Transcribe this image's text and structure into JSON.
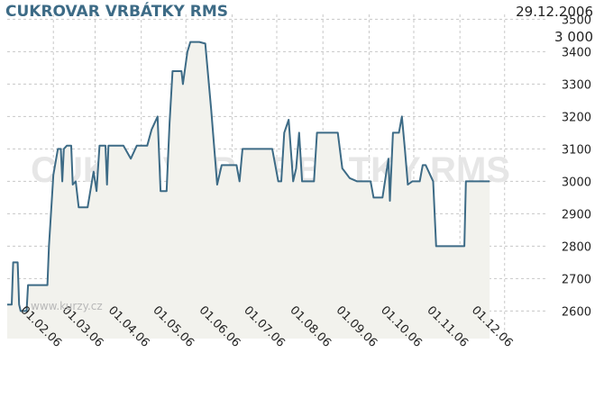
{
  "title": "CUKROVAR VRBÁTKY RMS",
  "date": "29.12.2006",
  "last_value": "3 000",
  "watermark": "CUKROVAR VRBÁTKY RMS",
  "credit": "www.kurzy.cz",
  "colors": {
    "line": "#3d6b86",
    "fill": "#f2f2ed",
    "grid": "#c8c8c8",
    "text": "#222222",
    "watermark": "#e6e6e6"
  },
  "chart_data": {
    "type": "area",
    "ylim": [
      2515,
      3515
    ],
    "yticks": [
      2600,
      2700,
      2800,
      2900,
      3000,
      3100,
      3200,
      3300,
      3400,
      3500
    ],
    "ytick_labels": [
      "2600",
      "2700",
      "2800",
      "2900",
      "3000",
      "3100",
      "3200",
      "3300",
      "3400",
      "3500"
    ],
    "xlim": [
      "2006-01-01",
      "2006-12-29"
    ],
    "xticks": [
      "2006-02-01",
      "2006-03-01",
      "2006-04-01",
      "2006-05-01",
      "2006-06-01",
      "2006-07-01",
      "2006-08-01",
      "2006-09-01",
      "2006-10-01",
      "2006-11-01",
      "2006-12-01"
    ],
    "xtick_labels": [
      "01.02.06",
      "01.03.06",
      "01.04.06",
      "01.05.06",
      "01.06.06",
      "01.07.06",
      "01.08.06",
      "01.09.06",
      "01.10.06",
      "01.11.06",
      "01.12.06"
    ],
    "grid": true,
    "series": [
      {
        "points": [
          [
            "2006-01-01",
            2620
          ],
          [
            "2006-01-04",
            2620
          ],
          [
            "2006-01-05",
            2750
          ],
          [
            "2006-01-08",
            2750
          ],
          [
            "2006-01-09",
            2620
          ],
          [
            "2006-01-10",
            2600
          ],
          [
            "2006-01-14",
            2600
          ],
          [
            "2006-01-15",
            2680
          ],
          [
            "2006-01-28",
            2680
          ],
          [
            "2006-01-29",
            2800
          ],
          [
            "2006-02-01",
            3020
          ],
          [
            "2006-02-04",
            3100
          ],
          [
            "2006-02-06",
            3100
          ],
          [
            "2006-02-07",
            3000
          ],
          [
            "2006-02-08",
            3100
          ],
          [
            "2006-02-10",
            3110
          ],
          [
            "2006-02-13",
            3110
          ],
          [
            "2006-02-14",
            2990
          ],
          [
            "2006-02-16",
            3000
          ],
          [
            "2006-02-18",
            2920
          ],
          [
            "2006-02-24",
            2920
          ],
          [
            "2006-02-28",
            3030
          ],
          [
            "2006-03-02",
            2970
          ],
          [
            "2006-03-04",
            3110
          ],
          [
            "2006-03-08",
            3110
          ],
          [
            "2006-03-09",
            2990
          ],
          [
            "2006-03-10",
            3110
          ],
          [
            "2006-03-20",
            3110
          ],
          [
            "2006-03-25",
            3070
          ],
          [
            "2006-03-29",
            3110
          ],
          [
            "2006-04-05",
            3110
          ],
          [
            "2006-04-08",
            3160
          ],
          [
            "2006-04-12",
            3200
          ],
          [
            "2006-04-14",
            2970
          ],
          [
            "2006-04-18",
            2970
          ],
          [
            "2006-04-20",
            3180
          ],
          [
            "2006-04-22",
            3340
          ],
          [
            "2006-04-28",
            3340
          ],
          [
            "2006-04-29",
            3300
          ],
          [
            "2006-05-02",
            3400
          ],
          [
            "2006-05-04",
            3430
          ],
          [
            "2006-05-10",
            3430
          ],
          [
            "2006-05-14",
            3425
          ],
          [
            "2006-05-18",
            3220
          ],
          [
            "2006-05-22",
            2990
          ],
          [
            "2006-05-25",
            3050
          ],
          [
            "2006-06-04",
            3050
          ],
          [
            "2006-06-06",
            3000
          ],
          [
            "2006-06-08",
            3100
          ],
          [
            "2006-06-28",
            3100
          ],
          [
            "2006-07-02",
            3000
          ],
          [
            "2006-07-04",
            3000
          ],
          [
            "2006-07-06",
            3150
          ],
          [
            "2006-07-09",
            3190
          ],
          [
            "2006-07-12",
            3000
          ],
          [
            "2006-07-14",
            3040
          ],
          [
            "2006-07-16",
            3150
          ],
          [
            "2006-07-18",
            3000
          ],
          [
            "2006-07-26",
            3000
          ],
          [
            "2006-07-28",
            3150
          ],
          [
            "2006-08-06",
            3150
          ],
          [
            "2006-08-11",
            3150
          ],
          [
            "2006-08-14",
            3040
          ],
          [
            "2006-08-19",
            3010
          ],
          [
            "2006-08-24",
            3000
          ],
          [
            "2006-09-02",
            3000
          ],
          [
            "2006-09-04",
            2950
          ],
          [
            "2006-09-10",
            2950
          ],
          [
            "2006-09-12",
            3010
          ],
          [
            "2006-09-14",
            3070
          ],
          [
            "2006-09-15",
            2940
          ],
          [
            "2006-09-17",
            3150
          ],
          [
            "2006-09-21",
            3150
          ],
          [
            "2006-09-23",
            3200
          ],
          [
            "2006-09-25",
            3100
          ],
          [
            "2006-09-27",
            2990
          ],
          [
            "2006-09-30",
            3000
          ],
          [
            "2006-10-05",
            3000
          ],
          [
            "2006-10-07",
            3050
          ],
          [
            "2006-10-09",
            3050
          ],
          [
            "2006-10-14",
            3000
          ],
          [
            "2006-10-16",
            2800
          ],
          [
            "2006-11-04",
            2800
          ],
          [
            "2006-11-05",
            3000
          ],
          [
            "2006-11-21",
            3000
          ]
        ]
      }
    ]
  }
}
